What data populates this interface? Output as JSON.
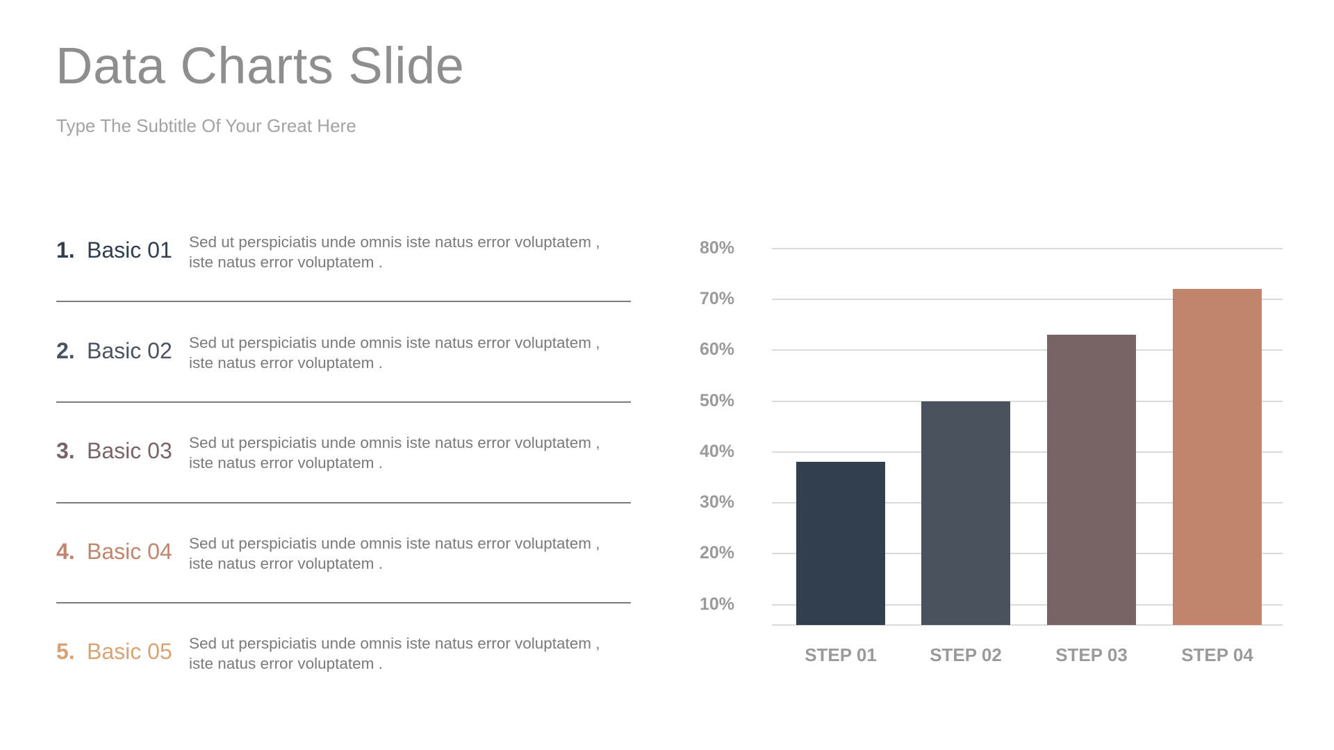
{
  "header": {
    "title": "Data Charts Slide",
    "subtitle": "Type The Subtitle Of Your Great Here"
  },
  "list": {
    "items": [
      {
        "number": "1.",
        "label": "Basic 01",
        "color": "#2f3d4e",
        "line1": "Sed ut perspiciatis unde omnis iste natus error voluptatem ,",
        "line2": "iste natus error voluptatem ."
      },
      {
        "number": "2.",
        "label": "Basic 02",
        "color": "#4a535d",
        "line1": "Sed ut perspiciatis unde omnis iste natus error voluptatem ,",
        "line2": "iste natus error voluptatem ."
      },
      {
        "number": "3.",
        "label": "Basic 03",
        "color": "#786464",
        "line1": "Sed ut perspiciatis unde omnis iste natus error voluptatem ,",
        "line2": "iste natus error voluptatem ."
      },
      {
        "number": "4.",
        "label": "Basic 04",
        "color": "#c1846c",
        "line1": "Sed ut perspiciatis unde omnis iste natus error voluptatem ,",
        "line2": "iste natus error voluptatem ."
      },
      {
        "number": "5.",
        "label": "Basic 05",
        "color": "#d9a273",
        "line1": "Sed ut perspiciatis unde omnis iste natus error voluptatem ,",
        "line2": "iste natus error voluptatem ."
      }
    ]
  },
  "chart_data": {
    "type": "bar",
    "title": "",
    "xlabel": "",
    "ylabel": "",
    "categories": [
      "STEP 01",
      "STEP 02",
      "STEP 03",
      "STEP 04"
    ],
    "values": [
      38,
      50,
      63,
      72
    ],
    "colors": [
      "#323f4f",
      "#4a535d",
      "#786464",
      "#c1846c"
    ],
    "yticks": [
      "80%",
      "70%",
      "60%",
      "50%",
      "40%",
      "30%",
      "20%",
      "10%"
    ],
    "ytick_values": [
      80,
      70,
      60,
      50,
      40,
      30,
      20,
      10
    ],
    "ylim": [
      6,
      80
    ],
    "grid": true,
    "legend": "none"
  }
}
